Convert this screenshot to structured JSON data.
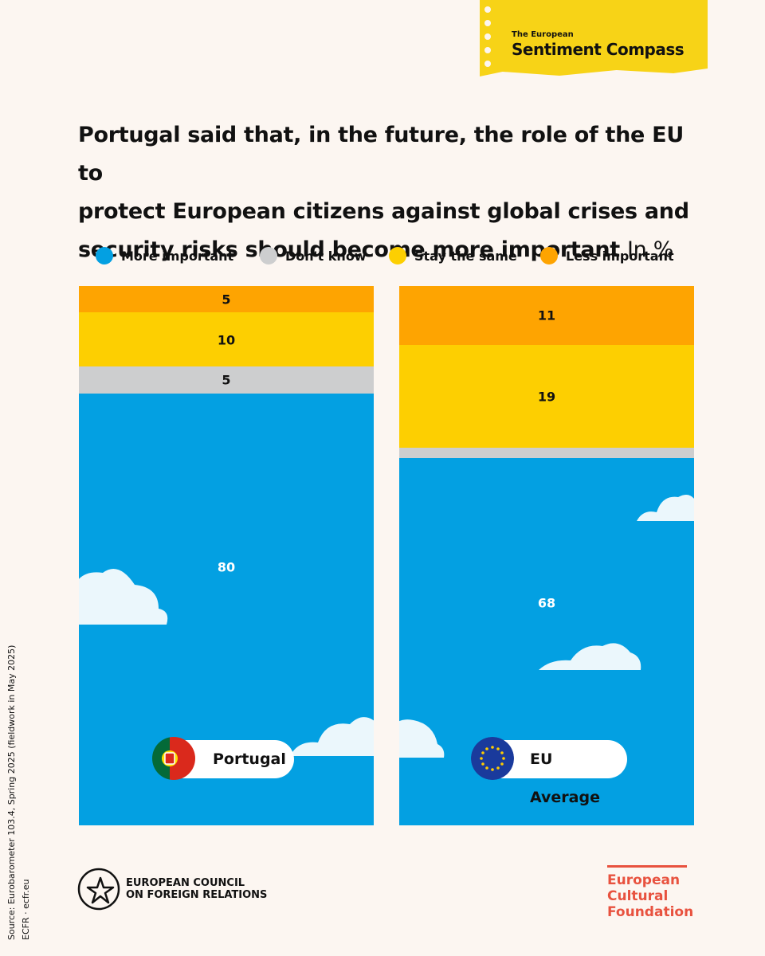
{
  "badge": {
    "small": "The European",
    "big": "Sentiment Compass"
  },
  "title": {
    "lines": [
      "Portugal said that, in the future, the role of the EU to",
      "protect European citizens against global crises and",
      "security risks should become more important"
    ],
    "unit": "In %"
  },
  "colors": {
    "more": "#03a0e2",
    "dont_know": "#cdcecf",
    "same": "#fdcf01",
    "less": "#fea401",
    "background": "#fcf6f1"
  },
  "chart_data": {
    "type": "bar",
    "stacked": true,
    "unit": "%",
    "categories": [
      "Portugal",
      "EU Average"
    ],
    "series": [
      {
        "name": "More important",
        "values": [
          80,
          68
        ]
      },
      {
        "name": "Don't know",
        "values": [
          5,
          2
        ]
      },
      {
        "name": "Stay the same",
        "values": [
          10,
          19
        ]
      },
      {
        "name": "Less important",
        "values": [
          5,
          11
        ]
      }
    ],
    "data_labels": [
      [
        "80",
        "5",
        "10",
        "5"
      ],
      [
        "68",
        "",
        "19",
        "11"
      ]
    ],
    "ylim": [
      0,
      100
    ]
  },
  "panels": [
    {
      "label": "Portugal",
      "flag": "portugal-flag-icon"
    },
    {
      "label": "EU Average",
      "flag": "eu-flag-icon"
    }
  ],
  "source": {
    "line1": "Source: Eurobarometer 103.4, Spring 2025 (fieldwork in May 2025)",
    "line2": "ECFR · ecfr.eu"
  },
  "ecfr": {
    "line1": "EUROPEAN COUNCIL",
    "line2": "ON FOREIGN RELATIONS"
  },
  "ecf": {
    "line1": "European",
    "line2": "Cultural",
    "line3": "Foundation"
  }
}
